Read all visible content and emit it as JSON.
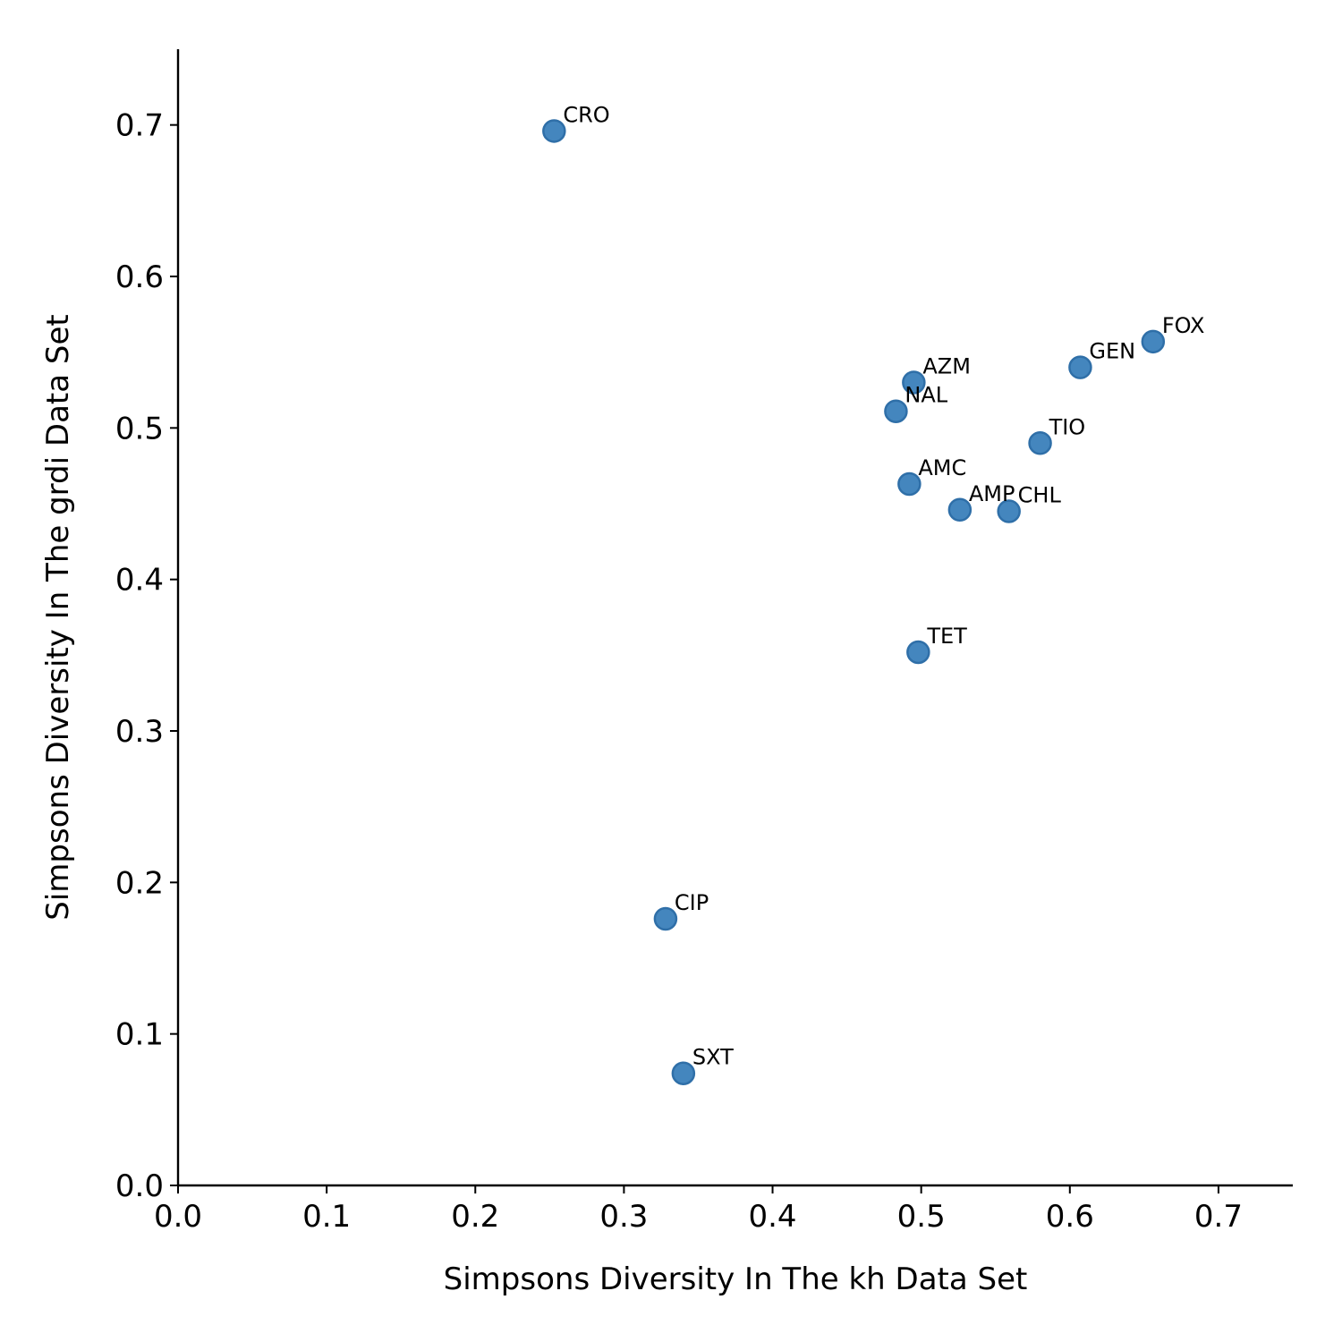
{
  "chart_data": {
    "type": "scatter",
    "title": "",
    "xlabel": "Simpsons Diversity In The kh Data Set",
    "ylabel": "Simpsons Diversity In The grdi Data Set",
    "xlim": [
      0.0,
      0.75
    ],
    "ylim": [
      0.0,
      0.75
    ],
    "xticks": [
      "0.0",
      "0.1",
      "0.2",
      "0.3",
      "0.4",
      "0.5",
      "0.6",
      "0.7"
    ],
    "yticks": [
      "0.0",
      "0.1",
      "0.2",
      "0.3",
      "0.4",
      "0.5",
      "0.6",
      "0.7"
    ],
    "grid": false,
    "marker_color": "#3a7fba",
    "marker_edge_color": "#2f6fa8",
    "points": [
      {
        "label": "CRO",
        "x": 0.253,
        "y": 0.696
      },
      {
        "label": "FOX",
        "x": 0.656,
        "y": 0.557
      },
      {
        "label": "GEN",
        "x": 0.607,
        "y": 0.54
      },
      {
        "label": "AZM",
        "x": 0.495,
        "y": 0.53
      },
      {
        "label": "NAL",
        "x": 0.483,
        "y": 0.511
      },
      {
        "label": "TIO",
        "x": 0.58,
        "y": 0.49
      },
      {
        "label": "AMC",
        "x": 0.492,
        "y": 0.463
      },
      {
        "label": "AMP",
        "x": 0.526,
        "y": 0.446
      },
      {
        "label": "CHL",
        "x": 0.559,
        "y": 0.445
      },
      {
        "label": "TET",
        "x": 0.498,
        "y": 0.352
      },
      {
        "label": "CIP",
        "x": 0.328,
        "y": 0.176
      },
      {
        "label": "SXT",
        "x": 0.34,
        "y": 0.074
      }
    ]
  }
}
